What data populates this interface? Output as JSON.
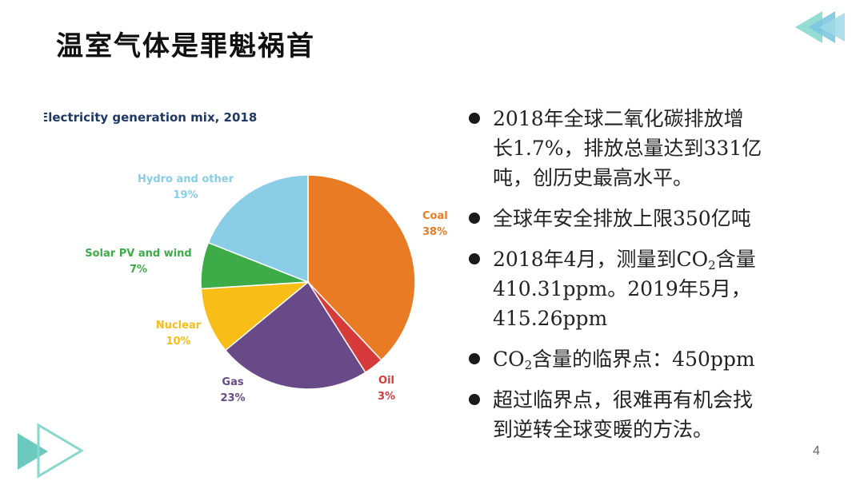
{
  "slide": {
    "title": "温室气体是罪魁祸首",
    "page_number": "4"
  },
  "chart_data": {
    "type": "pie",
    "title": "Electricity generation mix, 2018",
    "slices": [
      {
        "label": "Coal",
        "percent_label": "38%",
        "value": 38,
        "color": "#e87b23"
      },
      {
        "label": "Oil",
        "percent_label": "3%",
        "value": 3,
        "color": "#d63a3a"
      },
      {
        "label": "Gas",
        "percent_label": "23%",
        "value": 23,
        "color": "#684a88"
      },
      {
        "label": "Nuclear",
        "percent_label": "10%",
        "value": 10,
        "color": "#f8bd17"
      },
      {
        "label": "Solar PV and wind",
        "percent_label": "7%",
        "value": 7,
        "color": "#3cab48"
      },
      {
        "label": "Hydro and other",
        "percent_label": "19%",
        "value": 19,
        "color": "#89cde7"
      }
    ]
  },
  "bullets": [
    {
      "lines": [
        "2018年全球二氧化碳排放增",
        "长1.7%，排放总量达到331亿",
        "吨，创历史最高水平。"
      ]
    },
    {
      "lines": [
        "全球年安全排放上限350亿吨"
      ]
    },
    {
      "line1_pre": "2018年4月，测量到CO",
      "line1_sub": "2",
      "line1_post": "含量",
      "lines_rest": [
        "410.31ppm。2019年5月，",
        "415.26ppm"
      ]
    },
    {
      "pre": "CO",
      "sub": "2",
      "post": "含量的临界点：450ppm"
    },
    {
      "lines": [
        "超过临界点，很难再有机会找",
        "到逆转全球变暖的方法。"
      ]
    }
  ],
  "colors": {
    "deco_teal": "#7fd3c7",
    "deco_blue": "#8ec9e6"
  },
  "icons": {
    "top_right": "double-chevron-left-icon",
    "bottom_left": "play-triangle-icon"
  }
}
